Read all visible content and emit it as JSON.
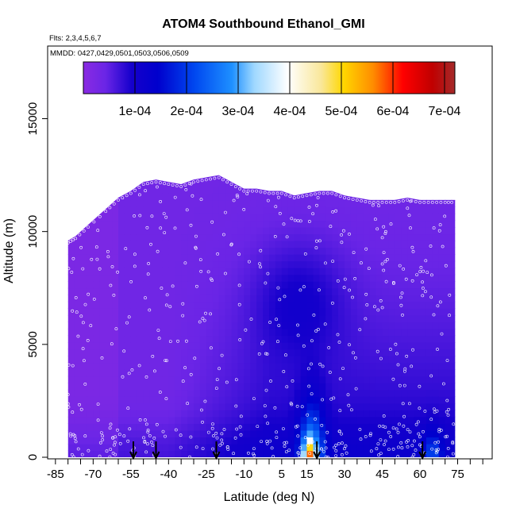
{
  "chart_data": {
    "type": "heatmap",
    "title": "ATOM4 Southbound Ethanol_GMI",
    "subtitle_flights": "Flts: 2,3,4,5,6,7",
    "subtitle_dates": "MMDD: 0427,0429,0501,0503,0506,0509",
    "xlabel": "Latitude (deg N)",
    "ylabel": "Altitude (m)",
    "xlim": [
      -88,
      88
    ],
    "ylim": [
      0,
      17500
    ],
    "x_ticks": [
      -85,
      -70,
      -55,
      -40,
      -25,
      -10,
      5,
      15,
      30,
      45,
      60,
      75
    ],
    "x_tick_labels": [
      "-85",
      "-70",
      "-55",
      "-40",
      "-25",
      "-10",
      "5",
      "15",
      "30",
      "45",
      "60",
      "75"
    ],
    "y_ticks": [
      0,
      5000,
      10000,
      15000
    ],
    "y_tick_labels": [
      "0",
      "5000",
      "10000",
      "15000"
    ],
    "colorbar": {
      "min": 0,
      "max": 0.00072,
      "tick_values": [
        0.0001,
        0.0002,
        0.0003,
        0.0004,
        0.0005,
        0.0006,
        0.0007
      ],
      "tick_labels": [
        "1e-04",
        "2e-04",
        "3e-04",
        "4e-04",
        "5e-04",
        "6e-04",
        "7e-04"
      ]
    },
    "colors": {
      "low": "#8a2be2",
      "mid_low": "#0000cd",
      "mid": "#1e90ff",
      "center": "#ffffff",
      "mid_high": "#ffd700",
      "high": "#ff0000",
      "top": "#a52a2a"
    },
    "profile_markers_latitude": [
      -54,
      -45,
      -21,
      19,
      61
    ],
    "altitude_ceiling": {
      "latitude": [
        -80,
        -77,
        -72,
        -65,
        -60,
        -55,
        -50,
        -45,
        -40,
        -35,
        -30,
        -25,
        -20,
        -15,
        -10,
        -5,
        0,
        5,
        10,
        15,
        20,
        25,
        30,
        35,
        40,
        45,
        50,
        55,
        60,
        65,
        70,
        74
      ],
      "altitude": [
        9600,
        9800,
        10300,
        11000,
        11500,
        11800,
        12200,
        12300,
        12200,
        12100,
        12300,
        12400,
        12500,
        12200,
        11900,
        11900,
        11800,
        11800,
        11600,
        11700,
        11800,
        11800,
        11600,
        11500,
        11400,
        11400,
        11400,
        11500,
        11400,
        11400,
        11400,
        11400
      ]
    }
  }
}
